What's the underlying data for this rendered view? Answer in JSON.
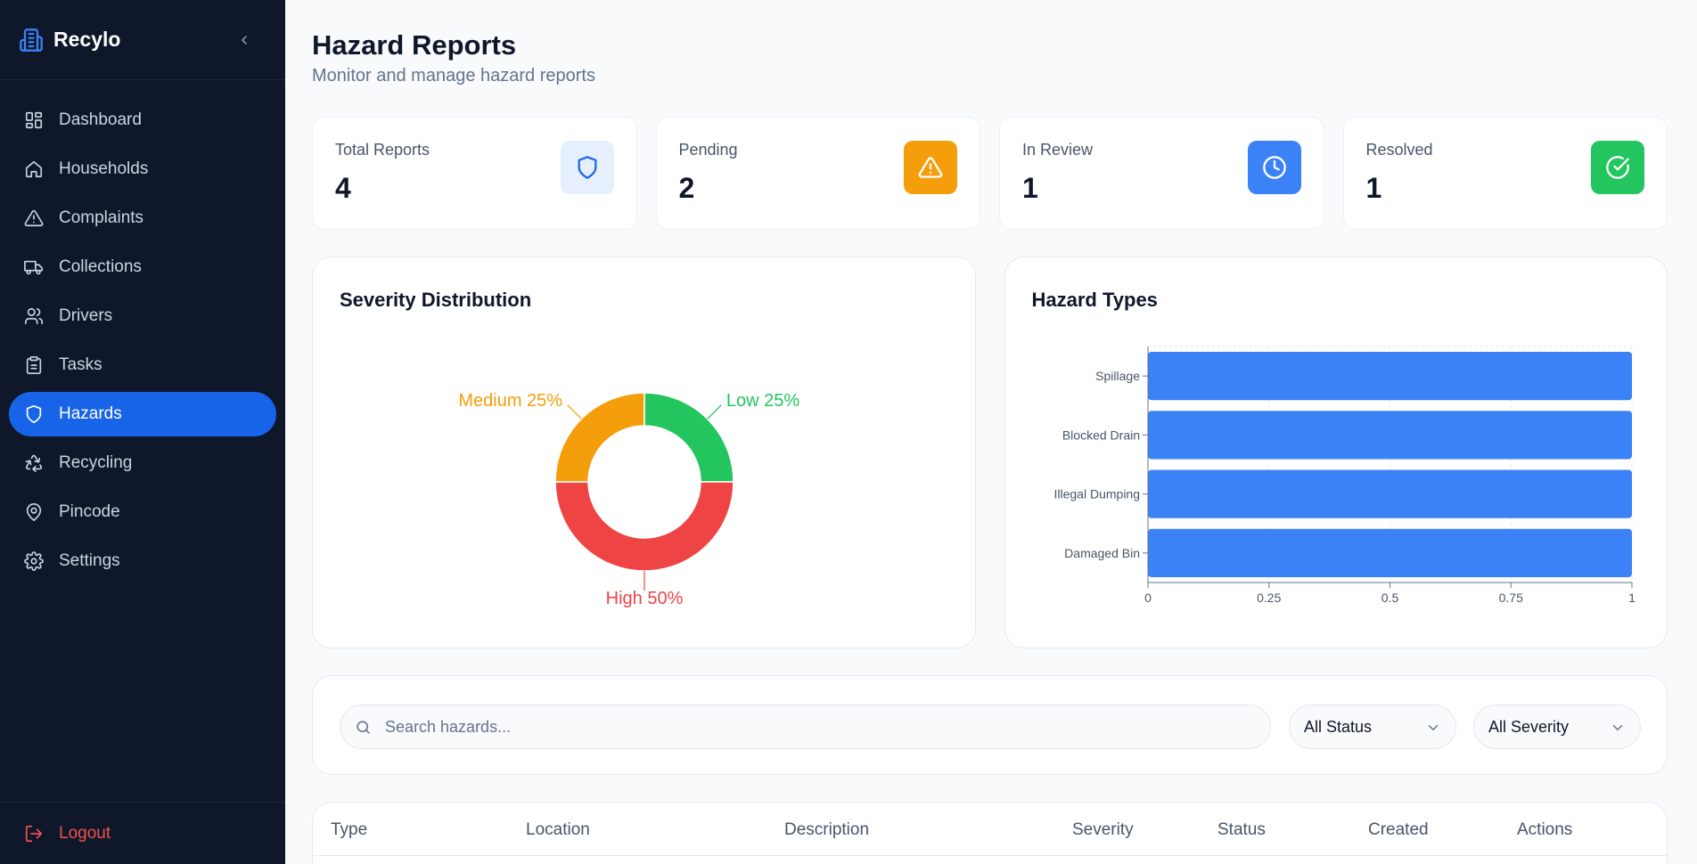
{
  "brand": {
    "name": "Recylo",
    "logo_icon": "building-icon"
  },
  "sidebar": {
    "items": [
      {
        "label": "Dashboard",
        "icon": "dashboard-icon",
        "active": false
      },
      {
        "label": "Households",
        "icon": "home-icon",
        "active": false
      },
      {
        "label": "Complaints",
        "icon": "alert-triangle-icon",
        "active": false
      },
      {
        "label": "Collections",
        "icon": "truck-icon",
        "active": false
      },
      {
        "label": "Drivers",
        "icon": "users-icon",
        "active": false
      },
      {
        "label": "Tasks",
        "icon": "clipboard-icon",
        "active": false
      },
      {
        "label": "Hazards",
        "icon": "shield-icon",
        "active": true
      },
      {
        "label": "Recycling",
        "icon": "recycle-icon",
        "active": false
      },
      {
        "label": "Pincode",
        "icon": "map-pin-icon",
        "active": false
      },
      {
        "label": "Settings",
        "icon": "gear-icon",
        "active": false
      }
    ],
    "logout_label": "Logout"
  },
  "header": {
    "title": "Hazard Reports",
    "subtitle": "Monitor and manage hazard reports"
  },
  "stats": [
    {
      "label": "Total Reports",
      "value": "4",
      "icon": "shield-icon",
      "color": "#1d6ae5"
    },
    {
      "label": "Pending",
      "value": "2",
      "icon": "alert-triangle-icon",
      "color": "#f59e0b"
    },
    {
      "label": "In Review",
      "value": "1",
      "icon": "clock-icon",
      "color": "#3b82f6"
    },
    {
      "label": "Resolved",
      "value": "1",
      "icon": "check-circle-icon",
      "color": "#22c55e"
    }
  ],
  "chart_data": [
    {
      "type": "pie",
      "title": "Severity Distribution",
      "donut": true,
      "slices": [
        {
          "label": "Low",
          "value": 25,
          "display": "Low 25%",
          "color": "#22c55e"
        },
        {
          "label": "High",
          "value": 50,
          "display": "High 50%",
          "color": "#ef4444"
        },
        {
          "label": "Medium",
          "value": 25,
          "display": "Medium 25%",
          "color": "#f59e0b"
        }
      ]
    },
    {
      "type": "bar",
      "orientation": "horizontal",
      "title": "Hazard Types",
      "categories": [
        "Spillage",
        "Blocked Drain",
        "Illegal Dumping",
        "Damaged Bin"
      ],
      "values": [
        1,
        1,
        1,
        1
      ],
      "xlim": [
        0,
        1
      ],
      "xticks": [
        "0",
        "0.25",
        "0.5",
        "0.75",
        "1"
      ],
      "xlabel": "",
      "ylabel": "",
      "grid": true,
      "color": "#3b82f6"
    }
  ],
  "filters": {
    "search_placeholder": "Search hazards...",
    "status_value": "All Status",
    "severity_value": "All Severity"
  },
  "table": {
    "columns": [
      "Type",
      "Location",
      "Description",
      "Severity",
      "Status",
      "Created",
      "Actions"
    ]
  }
}
